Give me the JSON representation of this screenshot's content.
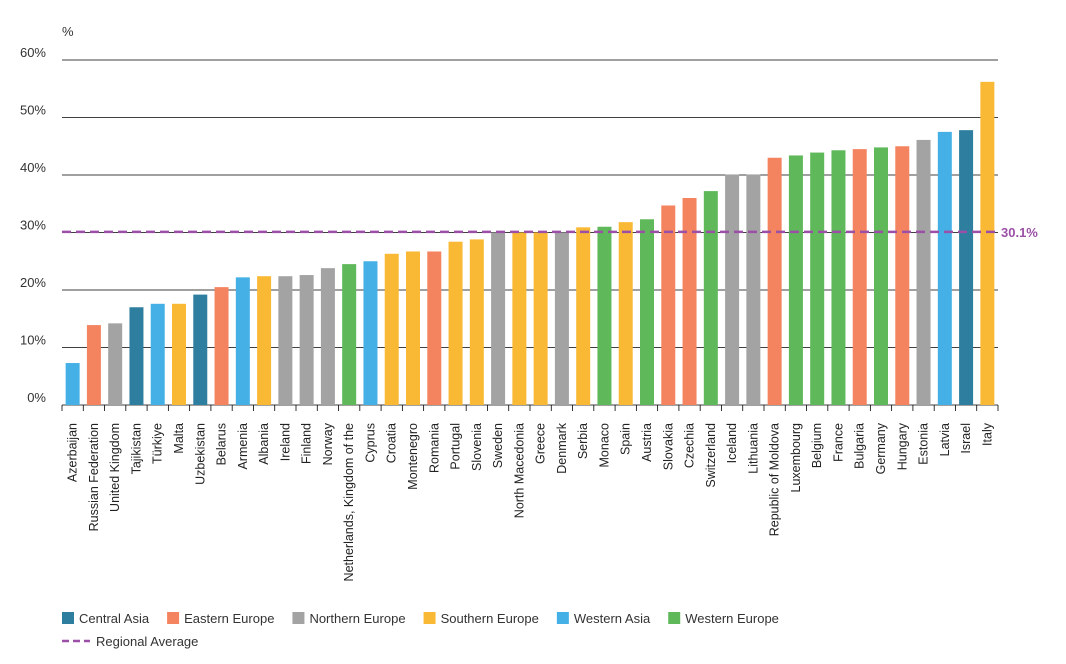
{
  "chart_data": {
    "type": "bar",
    "y_unit": "%",
    "ylim": [
      0,
      60
    ],
    "yticks": [
      0,
      10,
      20,
      30,
      40,
      50,
      60
    ],
    "ytick_suffix": "%",
    "grid": true,
    "legend_position": "bottom-left",
    "categories": [
      "Azerbaijan",
      "Russian Federation",
      "United Kingdom",
      "Tajikistan",
      "Türkiye",
      "Malta",
      "Uzbekistan",
      "Belarus",
      "Armenia",
      "Albania",
      "Ireland",
      "Finland",
      "Norway",
      "Netherlands, Kingdom of the",
      "Cyprus",
      "Croatia",
      "Montenegro",
      "Romania",
      "Portugal",
      "Slovenia",
      "Sweden",
      "North Macedonia",
      "Greece",
      "Denmark",
      "Serbia",
      "Monaco",
      "Spain",
      "Austria",
      "Slovakia",
      "Czechia",
      "Switzerland",
      "Iceland",
      "Lithuania",
      "Republic of Moldova",
      "Luxembourg",
      "Belgium",
      "France",
      "Bulgaria",
      "Germany",
      "Hungary",
      "Estonia",
      "Latvia",
      "Israel",
      "Italy"
    ],
    "values": [
      7.3,
      13.9,
      14.2,
      17.0,
      17.6,
      17.6,
      19.2,
      20.5,
      22.2,
      22.4,
      22.4,
      22.6,
      23.8,
      24.5,
      25.0,
      26.3,
      26.7,
      26.7,
      28.4,
      28.8,
      30.0,
      30.0,
      30.0,
      30.0,
      30.9,
      31.0,
      31.8,
      32.3,
      34.7,
      36.0,
      37.2,
      40.1,
      40.1,
      43.0,
      43.4,
      43.9,
      44.3,
      44.5,
      44.8,
      45.0,
      46.1,
      47.5,
      47.8,
      56.2
    ],
    "regions": [
      "Western Asia",
      "Eastern Europe",
      "Northern Europe",
      "Central Asia",
      "Western Asia",
      "Southern Europe",
      "Central Asia",
      "Eastern Europe",
      "Western Asia",
      "Southern Europe",
      "Northern Europe",
      "Northern Europe",
      "Northern Europe",
      "Western Europe",
      "Western Asia",
      "Southern Europe",
      "Southern Europe",
      "Eastern Europe",
      "Southern Europe",
      "Southern Europe",
      "Northern Europe",
      "Southern Europe",
      "Southern Europe",
      "Northern Europe",
      "Southern Europe",
      "Western Europe",
      "Southern Europe",
      "Western Europe",
      "Eastern Europe",
      "Eastern Europe",
      "Western Europe",
      "Northern Europe",
      "Northern Europe",
      "Eastern Europe",
      "Western Europe",
      "Western Europe",
      "Western Europe",
      "Eastern Europe",
      "Western Europe",
      "Eastern Europe",
      "Northern Europe",
      "Western Asia",
      "Central Asia",
      "Southern Europe"
    ],
    "average": {
      "label": "Regional Average",
      "value": 30.1,
      "display": "30.1%",
      "color": "#9b4fa6"
    },
    "legend": [
      {
        "name": "Central Asia",
        "color": "#2e7ea0"
      },
      {
        "name": "Eastern Europe",
        "color": "#f4845f"
      },
      {
        "name": "Northern Europe",
        "color": "#a3a3a3"
      },
      {
        "name": "Southern Europe",
        "color": "#f9b935"
      },
      {
        "name": "Western Asia",
        "color": "#45b0e5"
      },
      {
        "name": "Western Europe",
        "color": "#5fb85a"
      }
    ]
  }
}
